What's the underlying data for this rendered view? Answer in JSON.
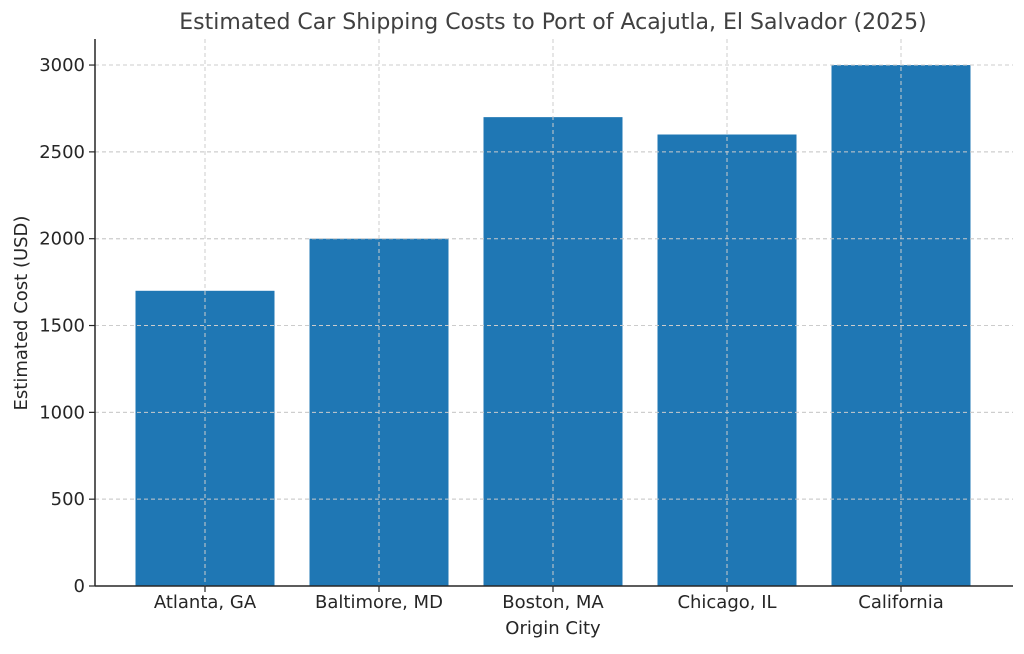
{
  "chart_data": {
    "type": "bar",
    "title": "Estimated Car Shipping Costs to Port of Acajutla, El Salvador (2025)",
    "xlabel": "Origin City",
    "ylabel": "Estimated Cost (USD)",
    "categories": [
      "Atlanta, GA",
      "Baltimore, MD",
      "Boston, MA",
      "Chicago, IL",
      "California"
    ],
    "values": [
      1700,
      2000,
      2700,
      2600,
      3000
    ],
    "ylim": [
      0,
      3150
    ],
    "yticks": [
      0,
      500,
      1000,
      1500,
      2000,
      2500,
      3000
    ],
    "ytick_labels": [
      "0",
      "500",
      "1000",
      "1500",
      "2000",
      "2500",
      "3000"
    ],
    "grid": true,
    "bar_color": "#1f77b4"
  }
}
